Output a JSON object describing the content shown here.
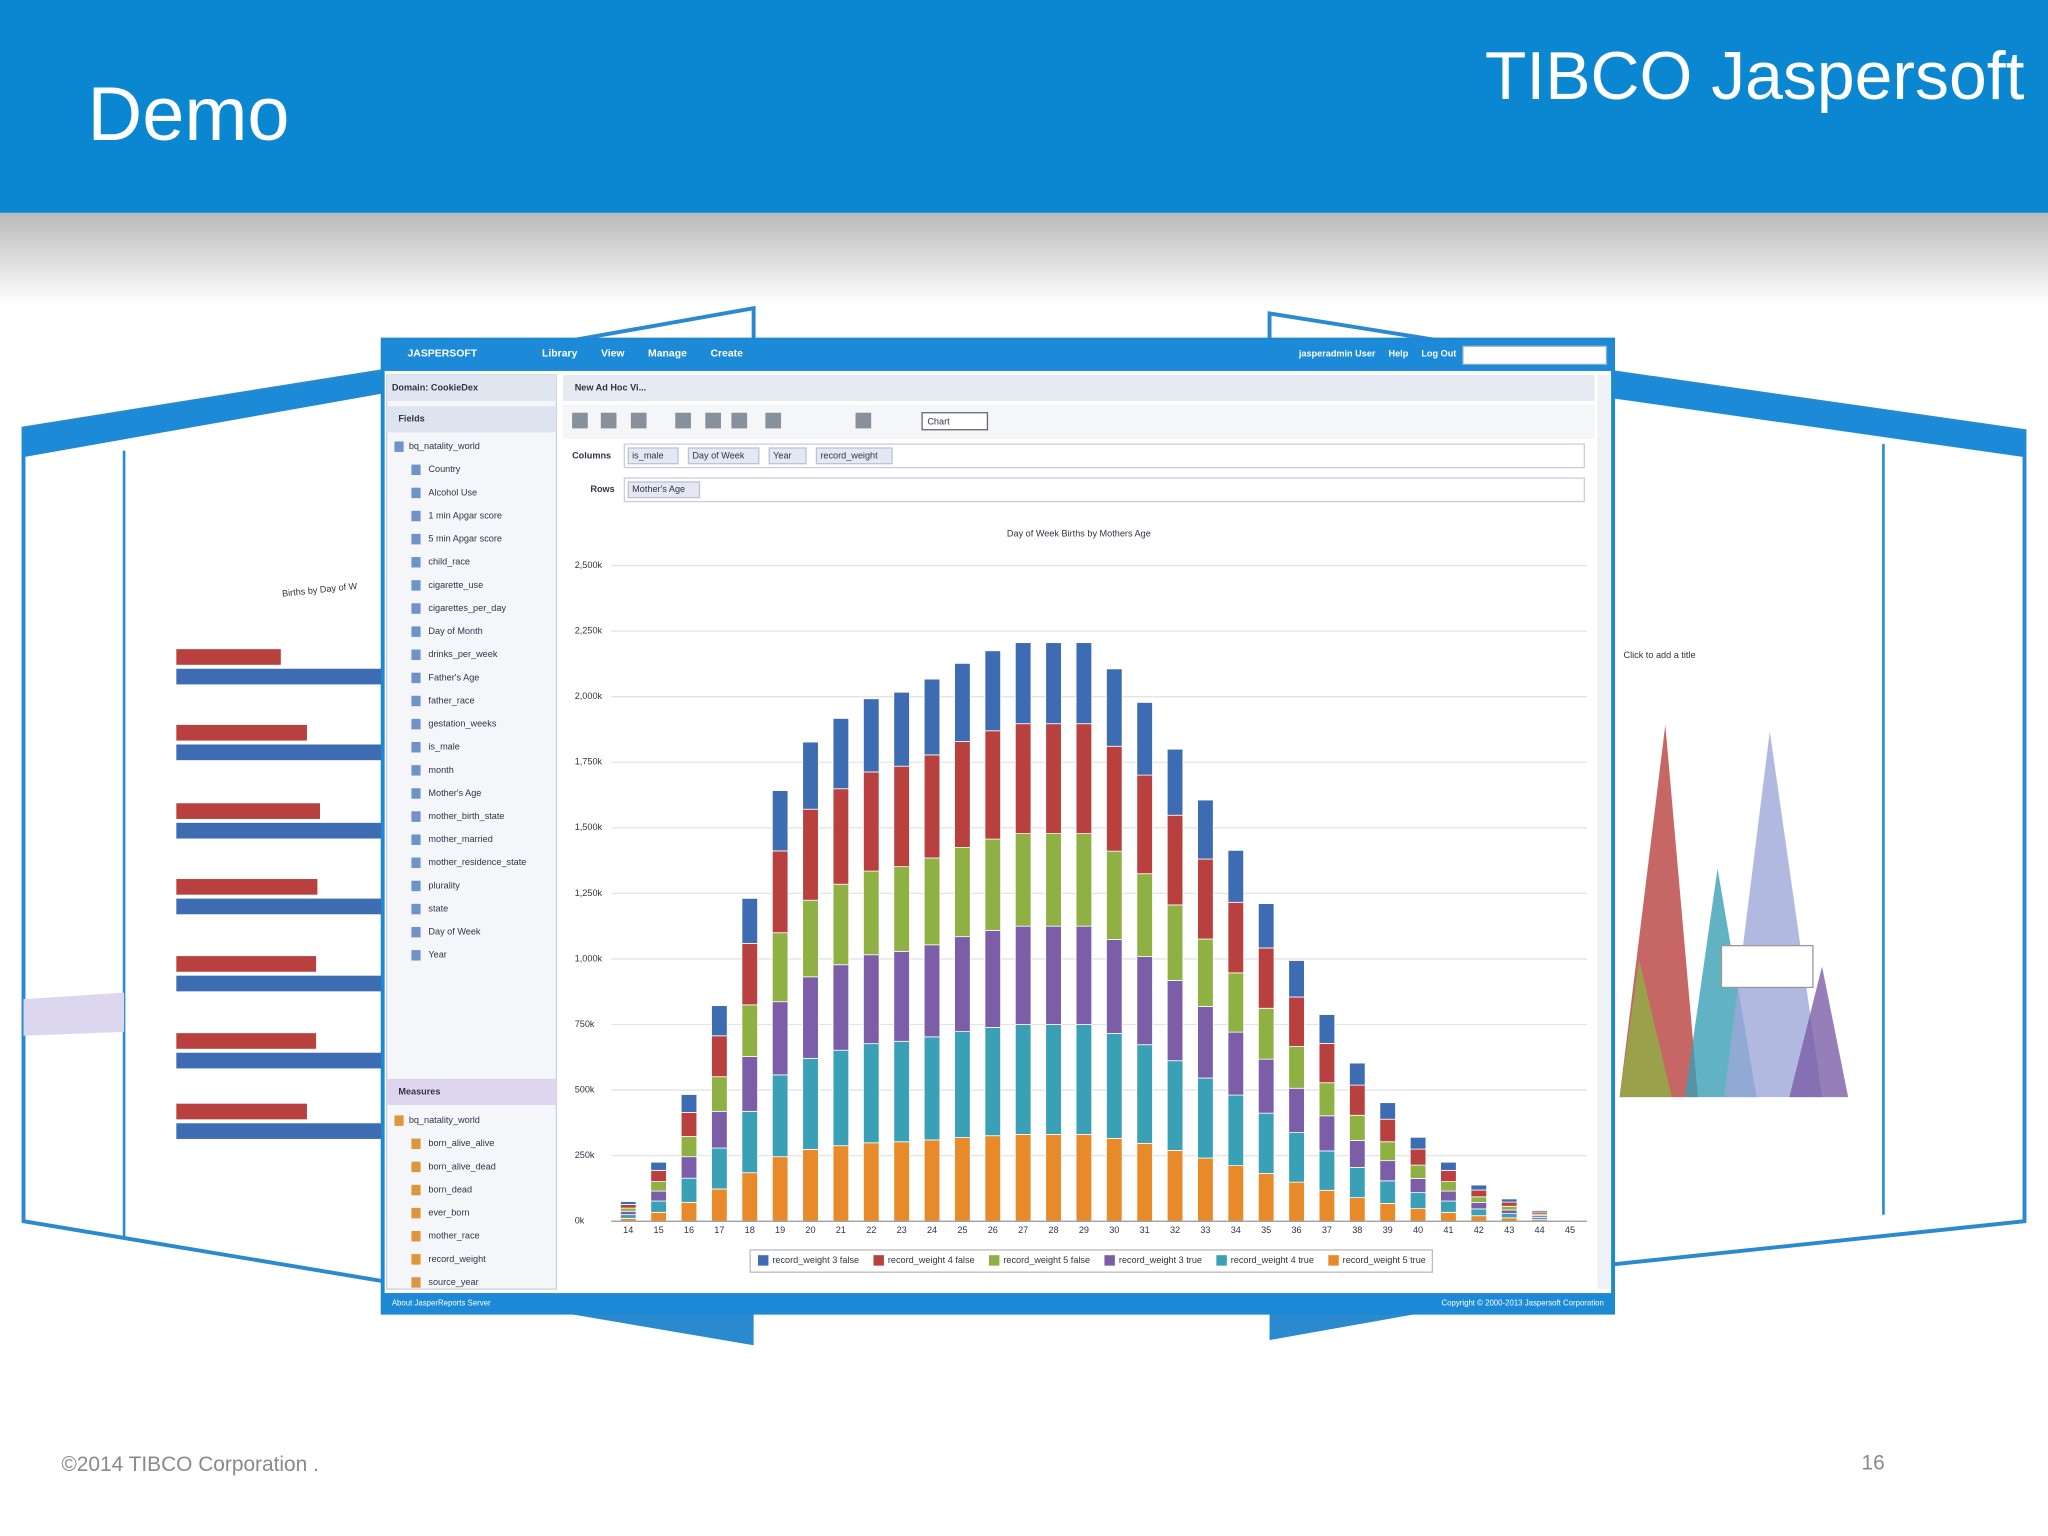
{
  "slide": {
    "title": "Demo",
    "logo": "TIBCO Jaspersoft",
    "footer": "©2014 TIBCO Corporation .",
    "page_number": "16"
  },
  "app": {
    "brand": "JASPERSOFT",
    "menu": [
      "Library",
      "View",
      "Manage",
      "Create"
    ],
    "user_links": [
      "jasperadmin User",
      "Help",
      "Log Out"
    ],
    "domain": "Domain: CookieDex",
    "tab": "New Ad Hoc Vi...",
    "fields_heading": "Fields",
    "fields": [
      "bq_natality_world",
      "Country",
      "Alcohol Use",
      "1 min Apgar score",
      "5 min Apgar score",
      "child_race",
      "cigarette_use",
      "cigarettes_per_day",
      "Day of Month",
      "drinks_per_week",
      "Father's Age",
      "father_race",
      "gestation_weeks",
      "is_male",
      "month",
      "Mother's Age",
      "mother_birth_state",
      "mother_married",
      "mother_residence_state",
      "plurality",
      "state",
      "Day of Week",
      "Year"
    ],
    "measures_heading": "Measures",
    "measures": [
      "bq_natality_world",
      "born_alive_alive",
      "born_alive_dead",
      "born_dead",
      "ever_born",
      "mother_race",
      "record_weight",
      "source_year"
    ],
    "columns_label": "Columns",
    "columns": [
      "is_male",
      "Day of Week",
      "Year",
      "record_weight"
    ],
    "rows_label": "Rows",
    "rows": [
      "Mother's Age"
    ],
    "chart_type": "Chart",
    "footer_left": "About JasperReports Server",
    "footer_right": "Copyright © 2000-2013 Jaspersoft Corporation"
  },
  "side_panels": {
    "left_title": "Births by Day of W",
    "right_title": "Click to add a title"
  },
  "chart_data": {
    "type": "stacked-bar",
    "title": "Day of Week Births by Mothers Age",
    "categories": [
      "14",
      "15",
      "16",
      "17",
      "18",
      "19",
      "20",
      "21",
      "22",
      "23",
      "24",
      "25",
      "26",
      "27",
      "28",
      "29",
      "30",
      "31",
      "32",
      "33",
      "34",
      "35",
      "36",
      "37",
      "38",
      "39",
      "40",
      "41",
      "42",
      "43",
      "44",
      "45"
    ],
    "ylim": [
      0,
      2500000
    ],
    "yticks": [
      {
        "value": 0,
        "label": "0k"
      },
      {
        "value": 250000,
        "label": "250k"
      },
      {
        "value": 500000,
        "label": "500k"
      },
      {
        "value": 750000,
        "label": "750k"
      },
      {
        "value": 1000000,
        "label": "1,000k"
      },
      {
        "value": 1250000,
        "label": "1,250k"
      },
      {
        "value": 1500000,
        "label": "1,500k"
      },
      {
        "value": 1750000,
        "label": "1,750k"
      },
      {
        "value": 2000000,
        "label": "2,000k"
      },
      {
        "value": 2250000,
        "label": "2,250k"
      },
      {
        "value": 2500000,
        "label": "2,500k"
      }
    ],
    "grid": true,
    "series": [
      {
        "name": "record_weight 3 false",
        "color": "#3d6cb3",
        "values": [
          11000,
          31000,
          68000,
          115000,
          172000,
          230000,
          256000,
          268000,
          279000,
          282000,
          289000,
          298000,
          305000,
          309000,
          309000,
          309000,
          295000,
          277000,
          252000,
          225000,
          198000,
          169000,
          139000,
          110000,
          84000,
          63000,
          45000,
          31000,
          19000,
          12000,
          6000,
          1000
        ]
      },
      {
        "name": "record_weight 4 false",
        "color": "#b8413f",
        "values": [
          14000,
          43000,
          92000,
          156000,
          234000,
          312000,
          347000,
          364000,
          378000,
          383000,
          393000,
          404000,
          413000,
          419000,
          419000,
          419000,
          400000,
          376000,
          342000,
          305000,
          269000,
          230000,
          189000,
          150000,
          115000,
          86000,
          61000,
          43000,
          26000,
          16000,
          8000,
          2000
        ]
      },
      {
        "name": "record_weight 5 false",
        "color": "#8fb043",
        "values": [
          12000,
          36000,
          77000,
          132000,
          197000,
          263000,
          292000,
          307000,
          319000,
          323000,
          331000,
          340000,
          348000,
          353000,
          353000,
          353000,
          337000,
          316000,
          288000,
          257000,
          226000,
          194000,
          159000,
          126000,
          96000,
          72000,
          51000,
          36000,
          22000,
          14000,
          6000,
          2000
        ]
      },
      {
        "name": "record_weight 3 true",
        "color": "#7b5ea7",
        "values": [
          13000,
          38000,
          82000,
          140000,
          209000,
          279000,
          311000,
          326000,
          339000,
          343000,
          351000,
          362000,
          370000,
          375000,
          375000,
          375000,
          358000,
          336000,
          306000,
          273000,
          240000,
          206000,
          169000,
          134000,
          103000,
          77000,
          54000,
          38000,
          24000,
          14000,
          7000,
          2000
        ]
      },
      {
        "name": "record_weight 4 true",
        "color": "#3aa0b5",
        "values": [
          14000,
          43000,
          92000,
          156000,
          234000,
          312000,
          347000,
          364000,
          378000,
          383000,
          393000,
          404000,
          413000,
          419000,
          419000,
          419000,
          400000,
          376000,
          342000,
          305000,
          269000,
          230000,
          189000,
          150000,
          115000,
          86000,
          61000,
          43000,
          26000,
          16000,
          8000,
          2000
        ]
      },
      {
        "name": "record_weight 5 true",
        "color": "#e98a2a",
        "values": [
          11000,
          34000,
          72000,
          123000,
          185000,
          246000,
          274000,
          288000,
          299000,
          303000,
          310000,
          319000,
          326000,
          331000,
          331000,
          331000,
          316000,
          297000,
          270000,
          241000,
          212000,
          182000,
          149000,
          118000,
          90000,
          68000,
          48000,
          34000,
          21000,
          13000,
          6000,
          1000
        ]
      }
    ]
  }
}
